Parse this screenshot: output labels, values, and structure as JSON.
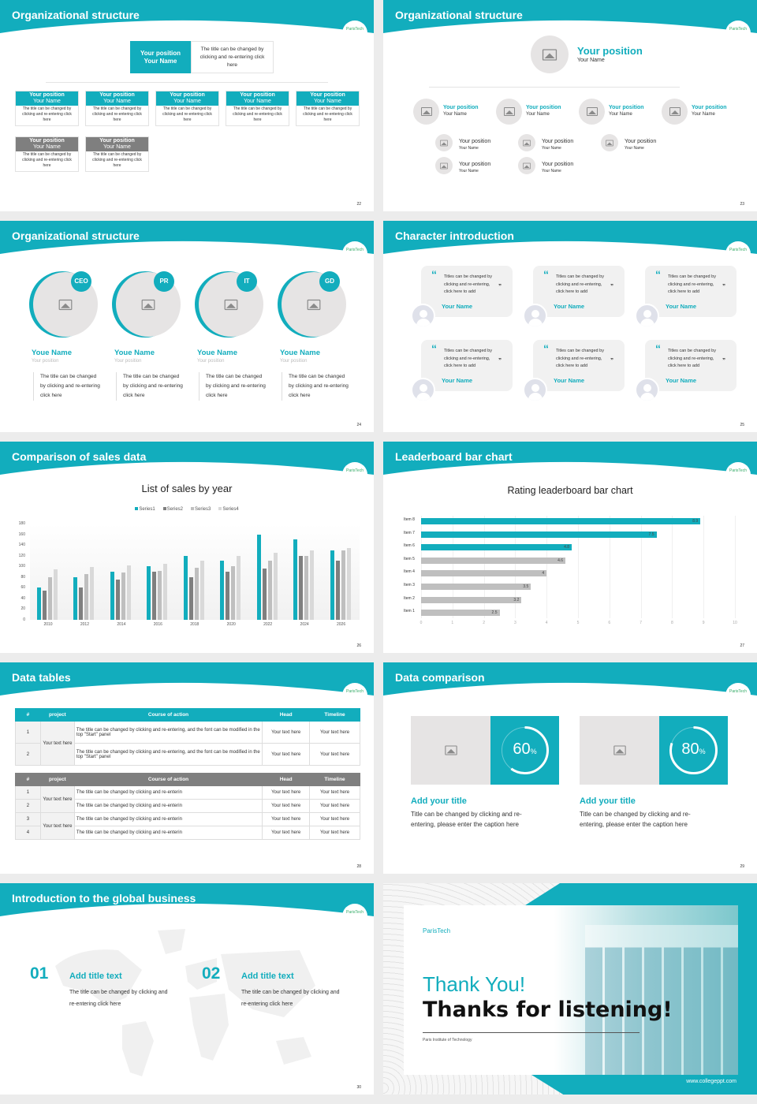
{
  "colors": {
    "accent": "#12adbd",
    "gray": "#7f7f7f",
    "light": "#e6e4e4"
  },
  "logo": "ParisTech",
  "slides": [
    {
      "title": "Organizational structure",
      "page": "22",
      "top": {
        "position": "Your position",
        "name": "Your Name",
        "desc": "The title can be changed by clicking and re-entering click here"
      },
      "row1": [
        {
          "position": "Your position",
          "name": "Your Name",
          "desc": "The title can be changed by clicking and re-entering click here"
        },
        {
          "position": "Your position",
          "name": "Your Name",
          "desc": "The title can be changed by clicking and re-entering click here"
        },
        {
          "position": "Your position",
          "name": "Your Name",
          "desc": "The title can be changed by clicking and re-entering click here"
        },
        {
          "position": "Your position",
          "name": "Your Name",
          "desc": "The title can be changed by clicking and re-entering click here"
        },
        {
          "position": "Your position",
          "name": "Your Name",
          "desc": "The title can be changed by clicking and re-entering click here"
        }
      ],
      "row2": [
        {
          "position": "Your position",
          "name": "Your Name",
          "desc": "The title can be changed by clicking and re-entering click here"
        },
        {
          "position": "Your position",
          "name": "Your Name",
          "desc": "The title can be changed by clicking and re-entering click here"
        }
      ]
    },
    {
      "title": "Organizational structure",
      "page": "23",
      "top": {
        "position": "Your position",
        "name": "Your Name"
      },
      "level1": [
        {
          "position": "Your position",
          "name": "Your Name"
        },
        {
          "position": "Your position",
          "name": "Your Name"
        },
        {
          "position": "Your position",
          "name": "Your Name"
        },
        {
          "position": "Your position",
          "name": "Your Name"
        }
      ],
      "level2": [
        {
          "position": "Your position",
          "name": "Your Name"
        },
        {
          "position": "Your position",
          "name": "Your Name"
        },
        {
          "position": "Your position",
          "name": "Your Name"
        },
        {
          "position": "Your position",
          "name": "Your Name"
        },
        {
          "position": "Your position",
          "name": "Your Name"
        }
      ]
    },
    {
      "title": "Organizational structure",
      "page": "24",
      "people": [
        {
          "badge": "CEO",
          "name": "Youe Name",
          "position": "Your position",
          "desc": "The title can be changed by clicking and re-entering click here"
        },
        {
          "badge": "PR",
          "name": "Youe Name",
          "position": "Your position",
          "desc": "The title can be changed by clicking and re-entering click here"
        },
        {
          "badge": "IT",
          "name": "Youe Name",
          "position": "Your position",
          "desc": "The title can be changed by clicking and re-entering click here"
        },
        {
          "badge": "GD",
          "name": "Youe Name",
          "position": "Your position",
          "desc": "The title can be changed by clicking and re-entering click here"
        }
      ]
    },
    {
      "title": "Character introduction",
      "page": "25",
      "cards": [
        {
          "quote": "Titles can be changed by clicking and re-entering, click here to add",
          "name": "Your Name"
        },
        {
          "quote": "Titles can be changed by clicking and re-entering, click here to add",
          "name": "Your Name"
        },
        {
          "quote": "Titles can be changed by clicking and re-entering, click here to add",
          "name": "Your Name"
        },
        {
          "quote": "Titles can be changed by clicking and re-entering, click here to add",
          "name": "Your Name"
        },
        {
          "quote": "Titles can be changed by clicking and re-entering, click here to add",
          "name": "Your Name"
        },
        {
          "quote": "Titles can be changed by clicking and re-entering, click here to add",
          "name": "Your Name"
        }
      ]
    },
    {
      "title": "Comparison of sales data",
      "page": "26"
    },
    {
      "title": "Leaderboard bar chart",
      "page": "27"
    },
    {
      "title": "Data tables",
      "page": "28",
      "headers": [
        "#",
        "project",
        "Course of action",
        "Head",
        "Timeline"
      ],
      "table1": {
        "project": "Your text here",
        "rows": [
          {
            "n": "1",
            "action": "The title can be changed by clicking and re-entering, and the font can be modified in the top \"Start\" panel",
            "head": "Your text here",
            "timeline": "Your text here"
          },
          {
            "n": "2",
            "action": "The title can be changed by clicking and re-entering, and the font can be modified in the top \"Start\" panel",
            "head": "Your text here",
            "timeline": "Your text here"
          }
        ]
      },
      "table2": {
        "projects": [
          "Your text here",
          "Your text here"
        ],
        "rows": [
          {
            "n": "1",
            "action": "The title can be changed by clicking and re-enterin",
            "head": "Your text here",
            "timeline": "Your text here"
          },
          {
            "n": "2",
            "action": "The title can be changed by clicking and re-enterin",
            "head": "Your text here",
            "timeline": "Your text here"
          },
          {
            "n": "3",
            "action": "The title can be changed by clicking and re-enterin",
            "head": "Your text here",
            "timeline": "Your text here"
          },
          {
            "n": "4",
            "action": "The title can be changed by clicking and re-enterin",
            "head": "Your text here",
            "timeline": "Your text here"
          }
        ]
      }
    },
    {
      "title": "Data comparison",
      "page": "29",
      "items": [
        {
          "pct": "60",
          "sign": "%",
          "title": "Add your title",
          "desc": "Title can be changed by clicking and re-entering, please enter the caption here"
        },
        {
          "pct": "80",
          "sign": "%",
          "title": "Add your title",
          "desc": "Title can be changed by clicking and re-entering, please enter the caption here"
        }
      ]
    },
    {
      "title": "Introduction to the global business",
      "page": "30",
      "items": [
        {
          "num": "01",
          "title": "Add title text",
          "desc": "The title can be changed by clicking and re-entering click here"
        },
        {
          "num": "02",
          "title": "Add title text",
          "desc": "The title can be changed by clicking and re-entering click here"
        }
      ]
    },
    {
      "logo": "ParisTech",
      "thanks": "Thank You!",
      "listening": "Thanks for listening!",
      "institute": "Paris Institute of Technology",
      "url": "www.collegeppt.com"
    }
  ],
  "chart_data": [
    {
      "type": "bar",
      "title": "List of sales by year",
      "categories": [
        "2010",
        "2012",
        "2014",
        "2016",
        "2018",
        "2020",
        "2022",
        "2024",
        "2026"
      ],
      "series": [
        {
          "name": "Series1",
          "color": "#12adbd",
          "values": [
            60,
            80,
            90,
            100,
            120,
            110,
            160,
            150,
            130
          ]
        },
        {
          "name": "Series2",
          "color": "#7f7f7f",
          "values": [
            55,
            60,
            75,
            90,
            80,
            90,
            96,
            120,
            110
          ]
        },
        {
          "name": "Series3",
          "color": "#bfbfbf",
          "values": [
            80,
            86,
            88,
            92,
            98,
            100,
            110,
            120,
            130
          ]
        },
        {
          "name": "Series4",
          "color": "#d9d9d9",
          "values": [
            95,
            99,
            102,
            105,
            110,
            120,
            126,
            130,
            135
          ]
        }
      ],
      "yticks": [
        0,
        20,
        40,
        60,
        80,
        100,
        120,
        140,
        160,
        180
      ],
      "ylim": [
        0,
        180
      ],
      "legend": "top",
      "grid": false
    },
    {
      "type": "bar",
      "orientation": "horizontal",
      "title": "Rating leaderboard bar chart",
      "categories": [
        "Item 8",
        "Item 7",
        "Item 6",
        "Item 5",
        "Item 4",
        "Item 3",
        "Item 2",
        "Item 1"
      ],
      "values": [
        8.9,
        7.5,
        4.8,
        4.6,
        4,
        3.5,
        3.2,
        2.5
      ],
      "colors": [
        "#12adbd",
        "#12adbd",
        "#12adbd",
        "#bfbfbf",
        "#bfbfbf",
        "#bfbfbf",
        "#bfbfbf",
        "#bfbfbf"
      ],
      "xticks": [
        0,
        1,
        2,
        3,
        4,
        5,
        6,
        7,
        8,
        9,
        10
      ],
      "xlim": [
        0,
        10
      ],
      "grid": true
    }
  ]
}
